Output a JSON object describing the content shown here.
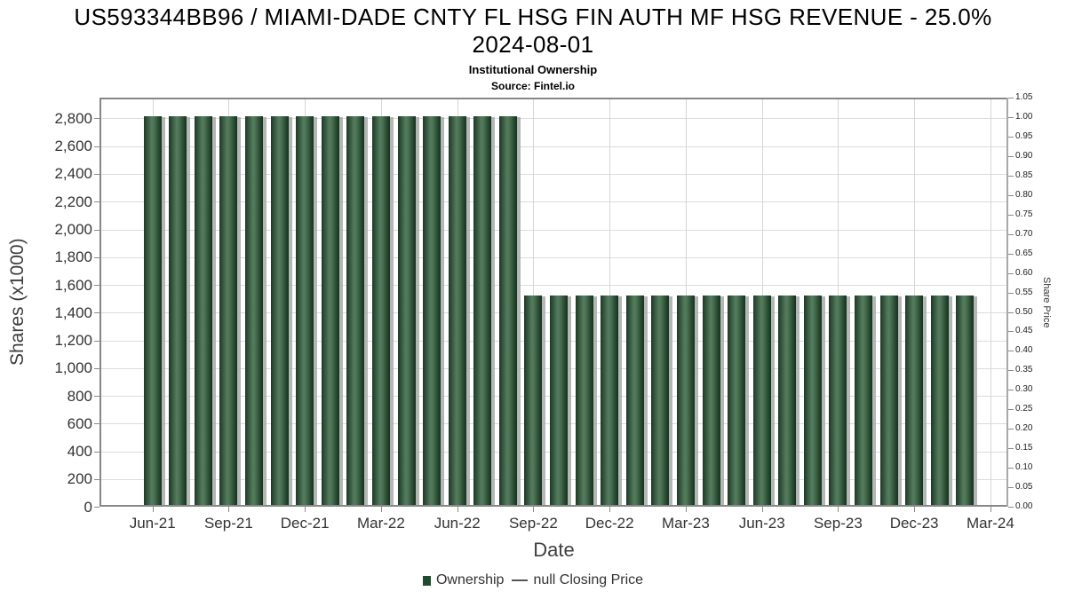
{
  "header": {
    "title_line1": "US593344BB96 / MIAMI-DADE CNTY FL HSG FIN AUTH MF HSG REVENUE - 25.0%",
    "title_line2": "2024-08-01",
    "subtitle": "Institutional Ownership",
    "source": "Source: Fintel.io"
  },
  "chart_data": {
    "type": "bar",
    "title": "US593344BB96 / MIAMI-DADE CNTY FL HSG FIN AUTH MF HSG REVENUE - 25.0% 2024-08-01",
    "subtitle": "Institutional Ownership",
    "source": "Source: Fintel.io",
    "xlabel": "Date",
    "ylabel_left": "Shares (x1000)",
    "ylabel_right": "Share Price",
    "x": [
      "Jun-21",
      "Jul-21",
      "Aug-21",
      "Sep-21",
      "Oct-21",
      "Nov-21",
      "Dec-21",
      "Jan-22",
      "Feb-22",
      "Mar-22",
      "Apr-22",
      "May-22",
      "Jun-22",
      "Jul-22",
      "Aug-22",
      "Sep-22",
      "Oct-22",
      "Nov-22",
      "Dec-22",
      "Jan-23",
      "Feb-23",
      "Mar-23",
      "Apr-23",
      "May-23",
      "Jun-23",
      "Jul-23",
      "Aug-23",
      "Sep-23",
      "Oct-23",
      "Nov-23",
      "Dec-23",
      "Jan-24",
      "Feb-24"
    ],
    "series": [
      {
        "name": "Ownership",
        "axis": "left",
        "unit": "shares_x1000",
        "values": [
          2818,
          2818,
          2818,
          2818,
          2818,
          2818,
          2818,
          2818,
          2818,
          2818,
          2818,
          2818,
          2818,
          2818,
          2818,
          1525,
          1525,
          1525,
          1525,
          1525,
          1525,
          1525,
          1525,
          1525,
          1525,
          1525,
          1525,
          1525,
          1525,
          1525,
          1525,
          1525,
          1525
        ]
      },
      {
        "name": "null Closing Price",
        "axis": "right",
        "unit": "price",
        "values": []
      }
    ],
    "x_tick_labels": [
      "Jun-21",
      "Sep-21",
      "Dec-21",
      "Mar-22",
      "Jun-22",
      "Sep-22",
      "Dec-22",
      "Mar-23",
      "Jun-23",
      "Sep-23",
      "Dec-23",
      "Mar-24"
    ],
    "y_ticks_left": [
      0,
      200,
      400,
      600,
      800,
      1000,
      1200,
      1400,
      1600,
      1800,
      2000,
      2200,
      2400,
      2600,
      2800
    ],
    "y_ticks_right": [
      0,
      0.05,
      0.1,
      0.15,
      0.2,
      0.25,
      0.3,
      0.35,
      0.4,
      0.45,
      0.5,
      0.55,
      0.6,
      0.65,
      0.7,
      0.75,
      0.8,
      0.85,
      0.9,
      0.95,
      1.0,
      1.05
    ],
    "ylim_left": [
      0,
      2950
    ],
    "ylim_right": [
      0,
      1.05
    ],
    "grid": true,
    "legend_position": "bottom",
    "legend": [
      {
        "label": "Ownership",
        "marker": "square",
        "color": "#1f4c2d"
      },
      {
        "label": "null Closing Price",
        "marker": "line",
        "color": "#555555"
      }
    ]
  },
  "colors": {
    "bar_dark": "#1d3926",
    "bar_mid": "#2b5036",
    "bar_light": "#567c5f",
    "bar_shadow": "#a9a9a9",
    "grid_line": "#dcdcdc",
    "axis_line": "#878787",
    "tick_text": "#333333",
    "background": "#ffffff"
  }
}
